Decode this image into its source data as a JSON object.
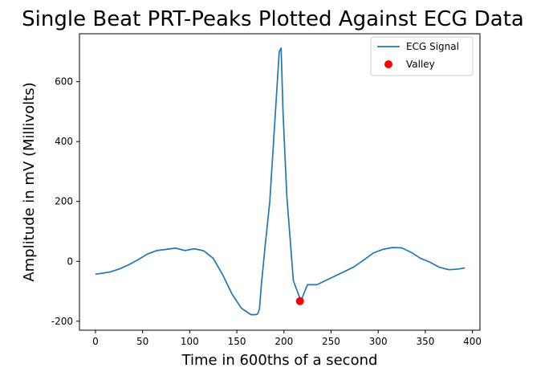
{
  "chart_data": {
    "type": "line",
    "title": "Single Beat PRT-Peaks Plotted Against ECG Data",
    "xlabel": "Time in 600ths of a second",
    "ylabel": "Amplitude in mV (Millivolts)",
    "xlim": [
      -17,
      408
    ],
    "ylim": [
      -230,
      760
    ],
    "xticks": [
      0,
      50,
      100,
      150,
      200,
      250,
      300,
      350,
      400
    ],
    "yticks": [
      -200,
      0,
      200,
      400,
      600
    ],
    "grid": false,
    "legend_position": "top-right",
    "colors": {
      "ecg": "#1f77b4",
      "valley": "#ff0000"
    },
    "series": [
      {
        "name": "ECG Signal",
        "kind": "line",
        "x": [
          0,
          15,
          25,
          35,
          45,
          55,
          65,
          75,
          85,
          95,
          105,
          115,
          125,
          135,
          145,
          155,
          165,
          170,
          172,
          174,
          176,
          180,
          185,
          190,
          195,
          197,
          199,
          203,
          210,
          218,
          225,
          235,
          245,
          255,
          265,
          275,
          285,
          295,
          305,
          315,
          325,
          335,
          345,
          355,
          365,
          375,
          385,
          392
        ],
        "y": [
          -43,
          -36,
          -26,
          -12,
          5,
          24,
          36,
          40,
          44,
          36,
          42,
          35,
          10,
          -45,
          -110,
          -157,
          -178,
          -178,
          -176,
          -160,
          -80,
          50,
          200,
          450,
          700,
          712,
          500,
          220,
          -65,
          -132,
          -78,
          -78,
          -63,
          -48,
          -33,
          -17,
          5,
          28,
          40,
          46,
          45,
          30,
          10,
          -3,
          -20,
          -28,
          -26,
          -22
        ]
      },
      {
        "name": "Valley",
        "kind": "scatter",
        "x": [
          217
        ],
        "y": [
          -133
        ]
      }
    ]
  }
}
